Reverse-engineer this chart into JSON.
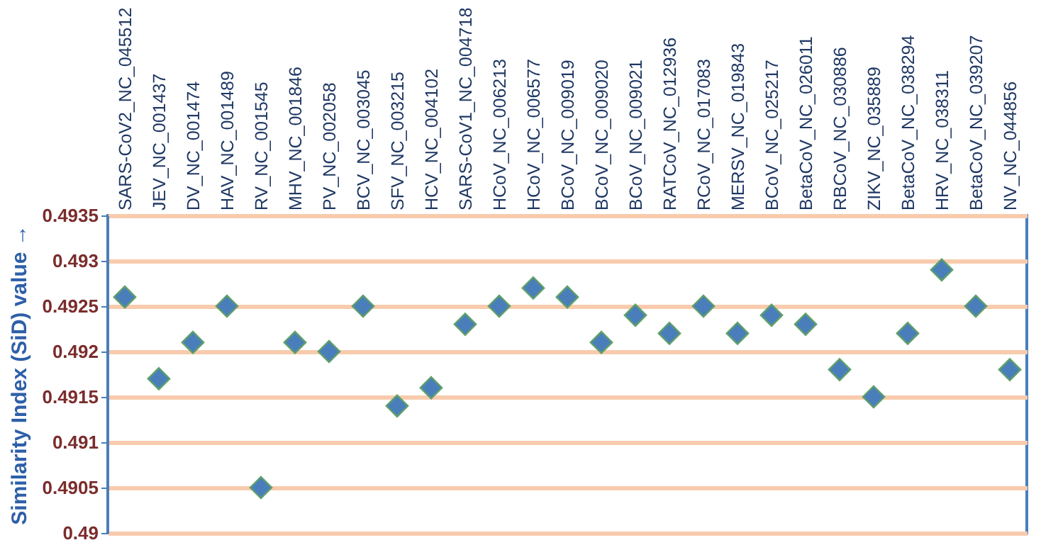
{
  "chart_data": {
    "type": "scatter",
    "ylabel": "Similarity Index (SiD) value →",
    "categories": [
      "SARS-CoV2_NC_045512",
      "JEV_NC_001437",
      "DV_NC_001474",
      "HAV_NC_001489",
      "RV_NC_001545",
      "MHV_NC_001846",
      "PV_NC_002058",
      "BCV_NC_003045",
      "SFV_NC_003215",
      "HCV_NC_004102",
      "SARS-CoV1_NC_004718",
      "HCoV_NC_006213",
      "HCoV_NC_006577",
      "BCoV_NC_009019",
      "BCoV_NC_009020",
      "BCoV_NC_009021",
      "RATCoV_NC_012936",
      "RCoV_NC_017083",
      "MERSV_NC_019843",
      "BCoV_NC_025217",
      "BetaCoV_NC_026011",
      "RBCoV_NC_030886",
      "ZIKV_NC_035889",
      "BetaCoV_NC_038294",
      "HRV_NC_038311",
      "BetaCoV_NC_039207",
      "NV_NC_044856"
    ],
    "series": [
      {
        "color": "#4a7ebb",
        "values": [
          0.4926,
          0.4917,
          0.4921,
          0.4925,
          0.4905,
          0.4921,
          0.492,
          0.4925,
          0.4914,
          0.4916,
          0.4923,
          0.4925,
          0.4927,
          0.4926,
          0.4921,
          0.4924,
          0.4922,
          0.4925,
          0.4922,
          0.4924,
          0.4923,
          0.4918,
          0.4915,
          0.4922,
          0.4929,
          0.4925,
          0.4918
        ]
      }
    ],
    "ylim": [
      0.49,
      0.4935
    ],
    "yticks": [
      0.49,
      0.4905,
      0.491,
      0.4915,
      0.492,
      0.4925,
      0.493,
      0.4935
    ],
    "grid": "y",
    "marker": "diamond"
  }
}
